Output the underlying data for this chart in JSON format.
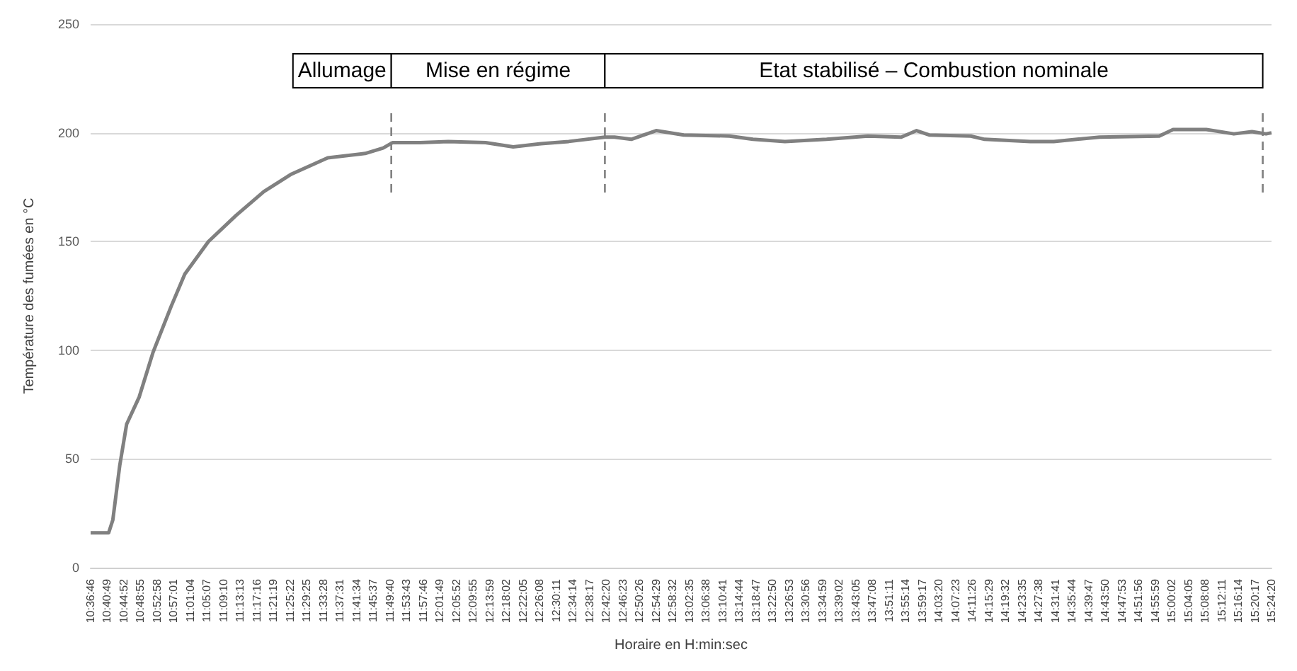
{
  "chart_data": {
    "type": "line",
    "xlabel": "Horaire en H:min:sec",
    "ylabel": "Température des fumées en °C",
    "xlim": [
      10.61278,
      15.40556
    ],
    "ylim": [
      0,
      250
    ],
    "yticks": [
      0,
      50,
      100,
      150,
      200,
      250
    ],
    "xticks": [
      {
        "value": 10.61278,
        "label": "10:36:46"
      },
      {
        "value": 10.68028,
        "label": "10:40:49"
      },
      {
        "value": 10.74778,
        "label": "10:44:52"
      },
      {
        "value": 10.81528,
        "label": "10:48:55"
      },
      {
        "value": 10.88278,
        "label": "10:52:58"
      },
      {
        "value": 10.95028,
        "label": "10:57:01"
      },
      {
        "value": 11.01778,
        "label": "11:01:04"
      },
      {
        "value": 11.08528,
        "label": "11:05:07"
      },
      {
        "value": 11.15278,
        "label": "11:09:10"
      },
      {
        "value": 11.22028,
        "label": "11:13:13"
      },
      {
        "value": 11.28778,
        "label": "11:17:16"
      },
      {
        "value": 11.35528,
        "label": "11:21:19"
      },
      {
        "value": 11.42278,
        "label": "11:25:22"
      },
      {
        "value": 11.49028,
        "label": "11:29:25"
      },
      {
        "value": 11.55778,
        "label": "11:33:28"
      },
      {
        "value": 11.62528,
        "label": "11:37:31"
      },
      {
        "value": 11.69278,
        "label": "11:41:34"
      },
      {
        "value": 11.76028,
        "label": "11:45:37"
      },
      {
        "value": 11.82778,
        "label": "11:49:40"
      },
      {
        "value": 11.89528,
        "label": "11:53:43"
      },
      {
        "value": 11.96278,
        "label": "11:57:46"
      },
      {
        "value": 12.03028,
        "label": "12:01:49"
      },
      {
        "value": 12.09778,
        "label": "12:05:52"
      },
      {
        "value": 12.16528,
        "label": "12:09:55"
      },
      {
        "value": 12.23306,
        "label": "12:13:59"
      },
      {
        "value": 12.30056,
        "label": "12:18:02"
      },
      {
        "value": 12.36806,
        "label": "12:22:05"
      },
      {
        "value": 12.43556,
        "label": "12:26:08"
      },
      {
        "value": 12.50306,
        "label": "12:30:11"
      },
      {
        "value": 12.57056,
        "label": "12:34:14"
      },
      {
        "value": 12.63806,
        "label": "12:38:17"
      },
      {
        "value": 12.70556,
        "label": "12:42:20"
      },
      {
        "value": 12.77306,
        "label": "12:46:23"
      },
      {
        "value": 12.84056,
        "label": "12:50:26"
      },
      {
        "value": 12.90806,
        "label": "12:54:29"
      },
      {
        "value": 12.97556,
        "label": "12:58:32"
      },
      {
        "value": 13.04306,
        "label": "13:02:35"
      },
      {
        "value": 13.11056,
        "label": "13:06:38"
      },
      {
        "value": 13.17806,
        "label": "13:10:41"
      },
      {
        "value": 13.24556,
        "label": "13:14:44"
      },
      {
        "value": 13.31306,
        "label": "13:18:47"
      },
      {
        "value": 13.38056,
        "label": "13:22:50"
      },
      {
        "value": 13.44806,
        "label": "13:26:53"
      },
      {
        "value": 13.51556,
        "label": "13:30:56"
      },
      {
        "value": 13.58306,
        "label": "13:34:59"
      },
      {
        "value": 13.65056,
        "label": "13:39:02"
      },
      {
        "value": 13.71806,
        "label": "13:43:05"
      },
      {
        "value": 13.78556,
        "label": "13:47:08"
      },
      {
        "value": 13.85306,
        "label": "13:51:11"
      },
      {
        "value": 13.92056,
        "label": "13:55:14"
      },
      {
        "value": 13.98806,
        "label": "13:59:17"
      },
      {
        "value": 14.05556,
        "label": "14:03:20"
      },
      {
        "value": 14.12306,
        "label": "14:07:23"
      },
      {
        "value": 14.19056,
        "label": "14:11:26"
      },
      {
        "value": 14.25806,
        "label": "14:15:29"
      },
      {
        "value": 14.32556,
        "label": "14:19:32"
      },
      {
        "value": 14.39306,
        "label": "14:23:35"
      },
      {
        "value": 14.46056,
        "label": "14:27:38"
      },
      {
        "value": 14.52806,
        "label": "14:31:41"
      },
      {
        "value": 14.59556,
        "label": "14:35:44"
      },
      {
        "value": 14.66306,
        "label": "14:39:47"
      },
      {
        "value": 14.73056,
        "label": "14:43:50"
      },
      {
        "value": 14.79806,
        "label": "14:47:53"
      },
      {
        "value": 14.86556,
        "label": "14:51:56"
      },
      {
        "value": 14.93306,
        "label": "14:55:59"
      },
      {
        "value": 15.00056,
        "label": "15:00:02"
      },
      {
        "value": 15.06806,
        "label": "15:04:05"
      },
      {
        "value": 15.13556,
        "label": "15:08:08"
      },
      {
        "value": 15.20306,
        "label": "15:12:11"
      },
      {
        "value": 15.27056,
        "label": "15:16:14"
      },
      {
        "value": 15.33806,
        "label": "15:20:17"
      },
      {
        "value": 15.40556,
        "label": "15:24:20"
      }
    ],
    "grid": "y",
    "marker": "none",
    "line_style": "solid",
    "series": [
      {
        "color": "#808080",
        "x": [
          10.61278,
          10.686,
          10.703,
          10.731,
          10.759,
          10.81,
          10.866,
          10.939,
          10.995,
          11.091,
          11.203,
          11.316,
          11.428,
          11.575,
          11.727,
          11.8,
          11.839,
          11.951,
          12.064,
          12.216,
          12.328,
          12.441,
          12.553,
          12.7,
          12.739,
          12.807,
          12.908,
          13.02,
          13.206,
          13.301,
          13.431,
          13.6,
          13.768,
          13.903,
          13.965,
          14.016,
          14.185,
          14.241,
          14.427,
          14.522,
          14.708,
          14.95,
          15.006,
          15.141,
          15.253,
          15.326,
          15.383,
          15.40556
        ],
        "values": [
          16,
          16,
          22,
          47,
          66,
          78.5,
          99,
          120,
          135,
          150,
          162,
          173,
          181,
          188.5,
          190.5,
          193,
          195.5,
          195.5,
          196,
          195.5,
          193.5,
          195,
          196,
          198,
          198,
          197,
          201,
          199,
          198.5,
          197,
          196,
          197,
          198.5,
          198,
          201,
          199,
          198.5,
          197,
          196,
          196,
          198,
          198.5,
          201.5,
          201.5,
          199.5,
          200.5,
          199.5,
          200
        ]
      }
    ],
    "ref_lines": [
      {
        "axis": "x",
        "value": 11.833,
        "line_style": "dashed",
        "color": "#808080"
      },
      {
        "axis": "x",
        "value": 12.7,
        "line_style": "dashed",
        "color": "#808080"
      },
      {
        "axis": "x",
        "value": 15.37,
        "line_style": "dashed",
        "color": "#808080"
      }
    ],
    "bands": [
      {
        "axis": "x",
        "from": 11.434,
        "to": 11.833,
        "label": "Allumage",
        "color": "#ffffff"
      },
      {
        "axis": "x",
        "from": 11.833,
        "to": 12.7,
        "label": "Mise en régime",
        "color": "#ffffff"
      },
      {
        "axis": "x",
        "from": 12.7,
        "to": 15.37,
        "label": "Etat stabilisé – Combustion nominale",
        "color": "#ffffff"
      }
    ]
  }
}
